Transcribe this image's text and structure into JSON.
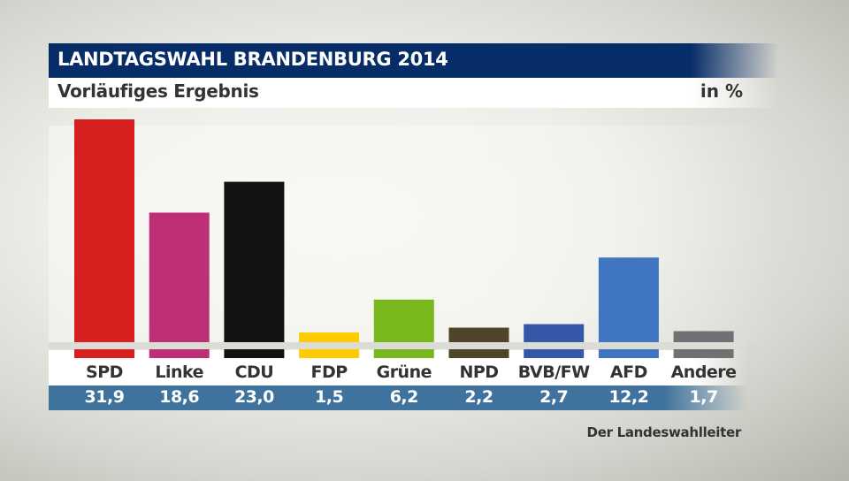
{
  "header": {
    "title": "LANDTAGSWAHL BRANDENBURG 2014",
    "subtitle": "Vorläufiges Ergebnis",
    "unit": "in %"
  },
  "source": "Der Landeswahlleiter",
  "chart_data": {
    "type": "bar",
    "title": "LANDTAGSWAHL BRANDENBURG 2014",
    "subtitle": "Vorläufiges Ergebnis",
    "ylabel": "in %",
    "xlabel": "",
    "categories": [
      "SPD",
      "Linke",
      "CDU",
      "FDP",
      "Grüne",
      "NPD",
      "BVB/FW",
      "AFD",
      "Andere"
    ],
    "values": [
      31.9,
      18.6,
      23.0,
      1.5,
      6.2,
      2.2,
      2.7,
      12.2,
      1.7
    ],
    "value_labels": [
      "31,9",
      "18,6",
      "23,0",
      "1,5",
      "6,2",
      "2,2",
      "2,7",
      "12,2",
      "1,7"
    ],
    "colors": [
      "#d81f1f",
      "#bd3076",
      "#121212",
      "#fecb00",
      "#79b81c",
      "#4f4528",
      "#3557a8",
      "#4075c1",
      "#707173"
    ],
    "ylim": [
      0,
      32
    ],
    "grid": false,
    "legend": "none"
  }
}
